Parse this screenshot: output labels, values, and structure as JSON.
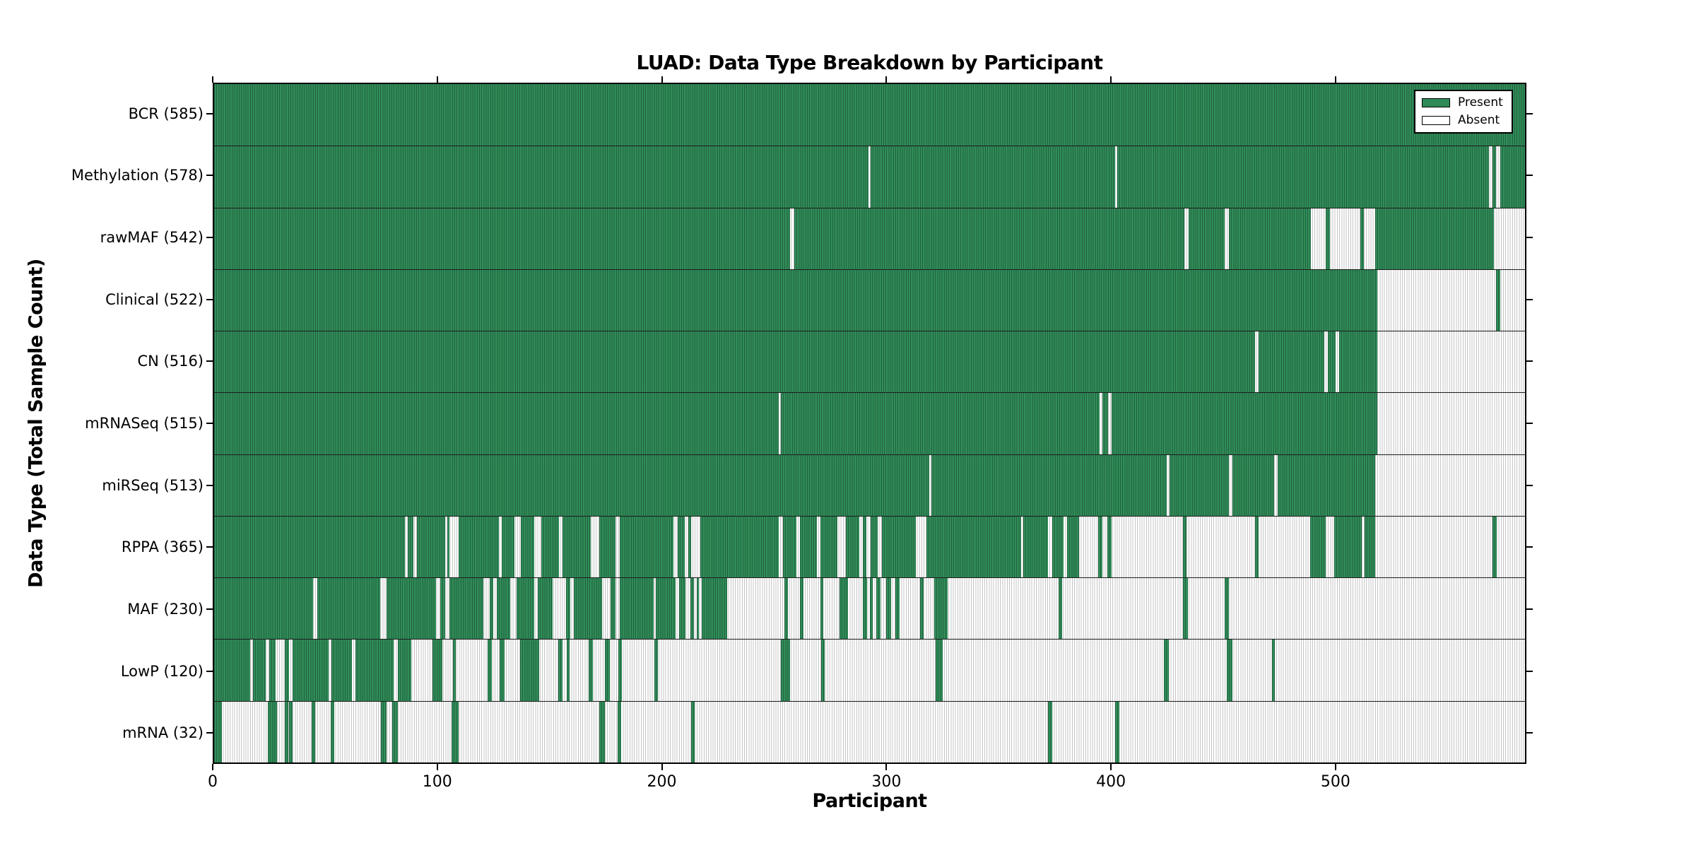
{
  "chart_data": {
    "type": "heatmap",
    "title": "LUAD: Data Type Breakdown by Participant",
    "xlabel": "Participant",
    "ylabel": "Data Type (Total Sample Count)",
    "x_ticks": [
      0,
      100,
      200,
      300,
      400,
      500
    ],
    "x_max": 585,
    "grid": false,
    "legend_position": "upper right",
    "legend": [
      {
        "label": "Present",
        "color": "#2e8b57"
      },
      {
        "label": "Absent",
        "color": "#ffffff"
      }
    ],
    "colors": {
      "present_fill": "#2e8b57",
      "present_edge": "#1a5e38",
      "absent_fill": "#ffffff",
      "absent_edge": "#c4c4c4",
      "frame": "#000000",
      "row_divider": "#1c1c1c"
    },
    "rows": [
      {
        "label": "BCR",
        "count": 585,
        "display": "BCR (585)",
        "present": [
          [
            0,
            585
          ]
        ]
      },
      {
        "label": "Methylation",
        "count": 578,
        "display": "Methylation (578)",
        "present": [
          [
            0,
            292
          ],
          [
            293,
            402
          ],
          [
            403,
            569
          ],
          [
            570.5,
            572
          ],
          [
            574,
            585
          ]
        ]
      },
      {
        "label": "rawMAF",
        "count": 542,
        "display": "rawMAF (542)",
        "present": [
          [
            0,
            257
          ],
          [
            259,
            433
          ],
          [
            435,
            451
          ],
          [
            453,
            489.5
          ],
          [
            496,
            498
          ],
          [
            511.5,
            513
          ],
          [
            518,
            571
          ]
        ]
      },
      {
        "label": "Clinical",
        "count": 522,
        "display": "Clinical (522)",
        "present": [
          [
            0,
            519
          ],
          [
            572,
            574
          ]
        ]
      },
      {
        "label": "CN",
        "count": 516,
        "display": "CN (516)",
        "present": [
          [
            0,
            464.5
          ],
          [
            466,
            495.5
          ],
          [
            497,
            500.5
          ],
          [
            502,
            519
          ]
        ]
      },
      {
        "label": "mRNASeq",
        "count": 515,
        "display": "mRNASeq (515)",
        "present": [
          [
            0,
            252
          ],
          [
            253,
            395
          ],
          [
            396.5,
            399
          ],
          [
            400.5,
            519
          ]
        ]
      },
      {
        "label": "miRSeq",
        "count": 513,
        "display": "miRSeq (513)",
        "present": [
          [
            0,
            319
          ],
          [
            320,
            425
          ],
          [
            426.5,
            453
          ],
          [
            454.5,
            473
          ],
          [
            474.5,
            518
          ]
        ]
      },
      {
        "label": "RPPA",
        "count": 365,
        "display": "RPPA (365)",
        "present": [
          [
            0,
            85
          ],
          [
            86.5,
            89
          ],
          [
            90.5,
            103
          ],
          [
            104,
            105
          ],
          [
            109,
            127
          ],
          [
            128.5,
            134
          ],
          [
            137,
            143
          ],
          [
            146,
            154
          ],
          [
            155.5,
            168
          ],
          [
            172,
            179
          ],
          [
            181,
            205
          ],
          [
            207,
            210
          ],
          [
            211.5,
            213
          ],
          [
            217,
            252
          ],
          [
            254,
            260
          ],
          [
            261.5,
            269
          ],
          [
            270.5,
            278
          ],
          [
            282,
            288
          ],
          [
            289.5,
            291
          ],
          [
            293,
            296
          ],
          [
            298,
            313
          ],
          [
            318,
            360
          ],
          [
            361,
            372
          ],
          [
            374,
            379
          ],
          [
            380.5,
            386
          ],
          [
            394.5,
            396.5
          ],
          [
            398.5,
            400.5
          ],
          [
            432.5,
            434
          ],
          [
            464.5,
            466
          ],
          [
            489,
            496
          ],
          [
            500,
            512
          ],
          [
            513.5,
            518
          ],
          [
            570.5,
            572.5
          ]
        ]
      },
      {
        "label": "MAF",
        "count": 230,
        "display": "MAF (230)",
        "present": [
          [
            0,
            44
          ],
          [
            46,
            74
          ],
          [
            77,
            99
          ],
          [
            101,
            103
          ],
          [
            105,
            120
          ],
          [
            123,
            124.5
          ],
          [
            126,
            132
          ],
          [
            135,
            143
          ],
          [
            144.5,
            151
          ],
          [
            157,
            159
          ],
          [
            160.5,
            173
          ],
          [
            177,
            179
          ],
          [
            181,
            196
          ],
          [
            197,
            206
          ],
          [
            207.5,
            210.5
          ],
          [
            212.5,
            214
          ],
          [
            215.5,
            216.5
          ],
          [
            217.5,
            229
          ],
          [
            254.5,
            256
          ],
          [
            261.5,
            263
          ],
          [
            270.5,
            272
          ],
          [
            279,
            283
          ],
          [
            289.5,
            291.5
          ],
          [
            292.5,
            294
          ],
          [
            295.5,
            297.5
          ],
          [
            300,
            302
          ],
          [
            304,
            306
          ],
          [
            315,
            316.5
          ],
          [
            321.5,
            327.5
          ],
          [
            377,
            378.5
          ],
          [
            432.5,
            434.5
          ],
          [
            451,
            453
          ]
        ]
      },
      {
        "label": "LowP",
        "count": 120,
        "display": "LowP (120)",
        "present": [
          [
            0,
            16
          ],
          [
            17.5,
            23
          ],
          [
            24.5,
            27.5
          ],
          [
            31.5,
            33.5
          ],
          [
            35,
            51
          ],
          [
            52.5,
            61.5
          ],
          [
            63,
            80
          ],
          [
            82,
            88
          ],
          [
            97.5,
            102
          ],
          [
            106.5,
            108
          ],
          [
            122,
            124
          ],
          [
            127.5,
            129.5
          ],
          [
            136.5,
            145
          ],
          [
            153.5,
            155.5
          ],
          [
            157.5,
            158.5
          ],
          [
            167,
            169
          ],
          [
            174.5,
            176.5
          ],
          [
            180.5,
            182
          ],
          [
            196.5,
            198
          ],
          [
            253,
            257
          ],
          [
            271,
            272.5
          ],
          [
            322,
            325
          ],
          [
            424,
            426
          ],
          [
            452,
            454.5
          ],
          [
            472,
            473.5
          ]
        ]
      },
      {
        "label": "mRNA",
        "count": 32,
        "display": "mRNA (32)",
        "present": [
          [
            0,
            3.5
          ],
          [
            24,
            28
          ],
          [
            31.5,
            33
          ],
          [
            33.5,
            35
          ],
          [
            43.5,
            45
          ],
          [
            52,
            53.5
          ],
          [
            74.5,
            77
          ],
          [
            79.5,
            82
          ],
          [
            106,
            109
          ],
          [
            172,
            174.5
          ],
          [
            180,
            181.5
          ],
          [
            213,
            214.5
          ],
          [
            372,
            374
          ],
          [
            402,
            404
          ]
        ]
      }
    ]
  }
}
